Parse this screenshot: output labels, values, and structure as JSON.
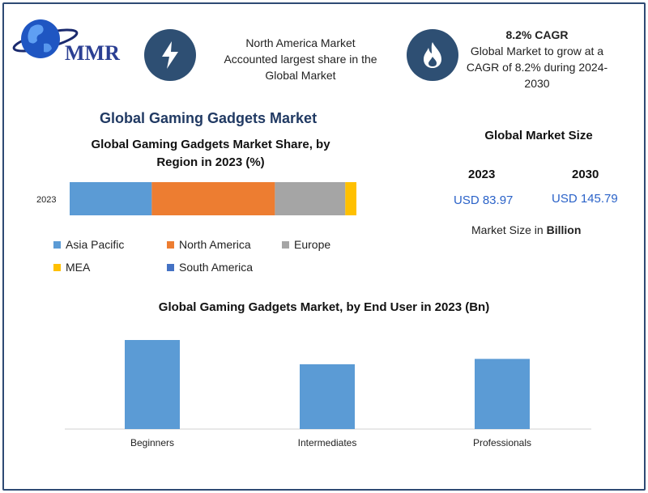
{
  "brand": {
    "logo_text": "MMR"
  },
  "header": {
    "card1": {
      "icon": "lightning-bolt-icon",
      "lines": [
        "North America Market",
        "Accounted largest share in the",
        "Global Market"
      ]
    },
    "card2": {
      "icon": "flame-icon",
      "title": "8.2% CAGR",
      "lines": [
        "Global Market to grow at a",
        "CAGR of 8.2% during 2024-",
        "2030"
      ]
    }
  },
  "main_title": "Global Gaming Gadgets Market",
  "market_size": {
    "title": "Global Market Size",
    "year1": "2023",
    "value1": "USD 83.97",
    "year2": "2030",
    "value2": "USD 145.79",
    "note_prefix": "Market Size in ",
    "note_bold": "Billion"
  },
  "colors": {
    "frame": "#2e4a74",
    "badge": "#2e4f73",
    "title": "#213a63",
    "value_blue": "#2a62c8"
  },
  "chart_data": [
    {
      "type": "bar",
      "orientation": "horizontal-stacked",
      "title_lines": [
        "Global Gaming Gadgets Market Share, by",
        "Region in 2023 (%)"
      ],
      "categories": [
        "2023"
      ],
      "series": [
        {
          "name": "Asia Pacific",
          "color": "#5b9bd5",
          "values": [
            28
          ]
        },
        {
          "name": "North America",
          "color": "#ed7d31",
          "values": [
            42
          ]
        },
        {
          "name": "Europe",
          "color": "#a5a5a5",
          "values": [
            24
          ]
        },
        {
          "name": "MEA",
          "color": "#ffc000",
          "values": [
            5
          ]
        },
        {
          "name": "South America",
          "color": "#4472c4",
          "values": [
            3
          ]
        }
      ],
      "legend_position": "bottom",
      "grid": false
    },
    {
      "type": "bar",
      "title": "Global Gaming Gadgets Market, by End User in 2023 (Bn)",
      "categories": [
        "Beginners",
        "Intermediates",
        "Professionals"
      ],
      "values": [
        33,
        24,
        26
      ],
      "color": "#5b9bd5",
      "ylim": [
        0,
        36
      ],
      "grid": false
    }
  ]
}
